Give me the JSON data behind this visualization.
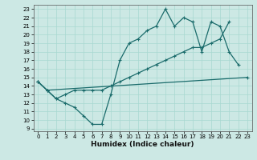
{
  "xlabel": "Humidex (Indice chaleur)",
  "bg_color": "#cce8e4",
  "line_color": "#1a6b6b",
  "xlim": [
    -0.5,
    23.5
  ],
  "ylim": [
    8.7,
    23.5
  ],
  "xtick_vals": [
    0,
    1,
    2,
    3,
    4,
    5,
    6,
    7,
    8,
    9,
    10,
    11,
    12,
    13,
    14,
    15,
    16,
    17,
    18,
    19,
    20,
    21,
    22,
    23
  ],
  "ytick_vals": [
    9,
    10,
    11,
    12,
    13,
    14,
    15,
    16,
    17,
    18,
    19,
    20,
    21,
    22,
    23
  ],
  "line1_x": [
    0,
    1,
    2,
    3,
    4,
    5,
    6,
    7,
    8,
    9,
    10,
    11,
    12,
    13,
    14,
    15,
    16,
    17,
    18,
    19,
    20,
    21,
    22
  ],
  "line1_y": [
    14.5,
    13.5,
    12.5,
    12.0,
    11.5,
    10.5,
    9.5,
    9.5,
    13.0,
    17.0,
    19.0,
    19.5,
    20.5,
    21.0,
    23.0,
    21.0,
    22.0,
    21.5,
    18.0,
    21.5,
    21.0,
    18.0,
    16.5
  ],
  "line2_x": [
    0,
    1,
    2,
    3,
    4,
    5,
    6,
    7,
    8,
    9,
    10,
    11,
    12,
    13,
    14,
    15,
    16,
    17,
    18,
    19,
    20,
    21
  ],
  "line2_y": [
    14.5,
    13.5,
    12.5,
    13.0,
    13.5,
    13.5,
    13.5,
    13.5,
    14.0,
    14.5,
    15.0,
    15.5,
    16.0,
    16.5,
    17.0,
    17.5,
    18.0,
    18.5,
    18.5,
    19.0,
    19.5,
    21.5
  ],
  "line3_x": [
    0,
    1,
    23
  ],
  "line3_y": [
    14.5,
    13.5,
    15.0
  ],
  "markersize": 3.5,
  "linewidth": 0.9,
  "tick_fontsize": 5,
  "xlabel_fontsize": 6.5
}
